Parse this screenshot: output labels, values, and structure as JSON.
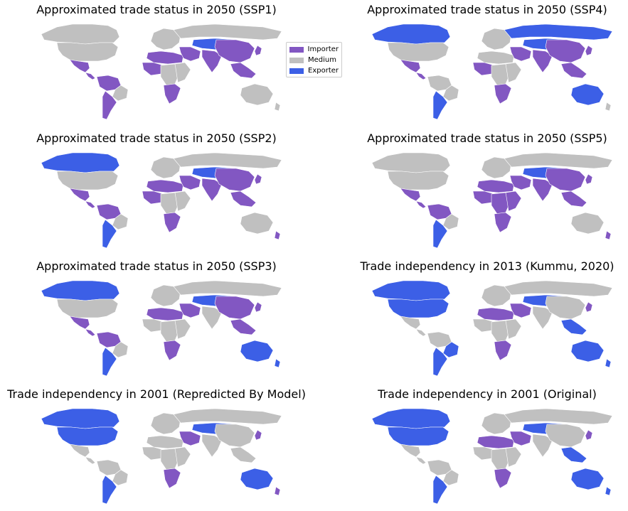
{
  "colors": {
    "importer": "#8257c2",
    "medium": "#c0c0c0",
    "exporter": "#3c5fe6"
  },
  "legend": {
    "items": [
      {
        "label": "Importer",
        "color": "#8257c2"
      },
      {
        "label": "Medium",
        "color": "#c0c0c0"
      },
      {
        "label": "Exporter",
        "color": "#3c5fe6"
      }
    ],
    "placement": "right of top-left panel"
  },
  "chart_data": [
    {
      "type": "choropleth-map",
      "title": "Approximated trade status in 2050 (SSP1)",
      "regions": {
        "canada": "medium",
        "usa": "medium",
        "mexico": "importer",
        "central_america": "importer",
        "south_america_north": "importer",
        "south_america_east": "medium",
        "south_america_south": "importer",
        "europe": "medium",
        "russia": "medium",
        "kazakhstan_mongolia": "exporter",
        "north_africa": "importer",
        "west_africa": "importer",
        "central_africa": "medium",
        "east_africa": "medium",
        "southern_africa": "importer",
        "middle_east": "importer",
        "india": "importer",
        "china": "importer",
        "southeast_asia": "importer",
        "japan": "importer",
        "australia": "medium",
        "new_zealand": "medium"
      }
    },
    {
      "type": "choropleth-map",
      "title": "Approximated trade status in 2050 (SSP4)",
      "regions": {
        "canada": "exporter",
        "usa": "medium",
        "mexico": "importer",
        "central_america": "importer",
        "south_america_north": "medium",
        "south_america_east": "medium",
        "south_america_south": "exporter",
        "europe": "medium",
        "russia": "exporter",
        "kazakhstan_mongolia": "exporter",
        "north_africa": "medium",
        "west_africa": "importer",
        "central_africa": "medium",
        "east_africa": "medium",
        "southern_africa": "importer",
        "middle_east": "importer",
        "india": "importer",
        "china": "importer",
        "southeast_asia": "importer",
        "japan": "importer",
        "australia": "exporter",
        "new_zealand": "medium"
      }
    },
    {
      "type": "choropleth-map",
      "title": "Approximated trade status in 2050 (SSP2)",
      "regions": {
        "canada": "exporter",
        "usa": "medium",
        "mexico": "importer",
        "central_america": "importer",
        "south_america_north": "importer",
        "south_america_east": "medium",
        "south_america_south": "exporter",
        "europe": "medium",
        "russia": "medium",
        "kazakhstan_mongolia": "exporter",
        "north_africa": "importer",
        "west_africa": "importer",
        "central_africa": "medium",
        "east_africa": "medium",
        "southern_africa": "importer",
        "middle_east": "importer",
        "india": "importer",
        "china": "importer",
        "southeast_asia": "importer",
        "japan": "importer",
        "australia": "medium",
        "new_zealand": "importer"
      }
    },
    {
      "type": "choropleth-map",
      "title": "Approximated trade status in 2050 (SSP5)",
      "regions": {
        "canada": "medium",
        "usa": "medium",
        "mexico": "importer",
        "central_america": "importer",
        "south_america_north": "importer",
        "south_america_east": "medium",
        "south_america_south": "exporter",
        "europe": "medium",
        "russia": "medium",
        "kazakhstan_mongolia": "exporter",
        "north_africa": "importer",
        "west_africa": "importer",
        "central_africa": "importer",
        "east_africa": "importer",
        "southern_africa": "importer",
        "middle_east": "importer",
        "india": "importer",
        "china": "importer",
        "southeast_asia": "importer",
        "japan": "importer",
        "australia": "medium",
        "new_zealand": "importer"
      }
    },
    {
      "type": "choropleth-map",
      "title": "Approximated trade status in 2050 (SSP3)",
      "regions": {
        "canada": "exporter",
        "usa": "medium",
        "mexico": "importer",
        "central_america": "importer",
        "south_america_north": "importer",
        "south_america_east": "medium",
        "south_america_south": "exporter",
        "europe": "medium",
        "russia": "medium",
        "kazakhstan_mongolia": "exporter",
        "north_africa": "importer",
        "west_africa": "medium",
        "central_africa": "medium",
        "east_africa": "medium",
        "southern_africa": "importer",
        "middle_east": "importer",
        "india": "medium",
        "china": "importer",
        "southeast_asia": "importer",
        "japan": "importer",
        "australia": "exporter",
        "new_zealand": "exporter"
      }
    },
    {
      "type": "choropleth-map",
      "title": "Trade independency in 2013 (Kummu, 2020)",
      "regions": {
        "canada": "exporter",
        "usa": "exporter",
        "mexico": "medium",
        "central_america": "medium",
        "south_america_north": "medium",
        "south_america_east": "exporter",
        "south_america_south": "exporter",
        "europe": "medium",
        "russia": "medium",
        "kazakhstan_mongolia": "exporter",
        "north_africa": "importer",
        "west_africa": "medium",
        "central_africa": "medium",
        "east_africa": "medium",
        "southern_africa": "importer",
        "middle_east": "importer",
        "india": "medium",
        "china": "medium",
        "southeast_asia": "exporter",
        "japan": "importer",
        "australia": "exporter",
        "new_zealand": "exporter"
      }
    },
    {
      "type": "choropleth-map",
      "title": "Trade independency in 2001 (Repredicted By Model)",
      "regions": {
        "canada": "exporter",
        "usa": "exporter",
        "mexico": "medium",
        "central_america": "medium",
        "south_america_north": "medium",
        "south_america_east": "medium",
        "south_america_south": "exporter",
        "europe": "medium",
        "russia": "medium",
        "kazakhstan_mongolia": "exporter",
        "north_africa": "medium",
        "west_africa": "medium",
        "central_africa": "medium",
        "east_africa": "medium",
        "southern_africa": "importer",
        "middle_east": "importer",
        "india": "medium",
        "china": "medium",
        "southeast_asia": "medium",
        "japan": "importer",
        "australia": "exporter",
        "new_zealand": "importer"
      }
    },
    {
      "type": "choropleth-map",
      "title": "Trade independency in 2001 (Original)",
      "regions": {
        "canada": "exporter",
        "usa": "exporter",
        "mexico": "medium",
        "central_america": "medium",
        "south_america_north": "medium",
        "south_america_east": "medium",
        "south_america_south": "exporter",
        "europe": "medium",
        "russia": "medium",
        "kazakhstan_mongolia": "exporter",
        "north_africa": "importer",
        "west_africa": "medium",
        "central_africa": "medium",
        "east_africa": "medium",
        "southern_africa": "importer",
        "middle_east": "importer",
        "india": "medium",
        "china": "medium",
        "southeast_asia": "exporter",
        "japan": "importer",
        "australia": "exporter",
        "new_zealand": "exporter"
      }
    }
  ]
}
